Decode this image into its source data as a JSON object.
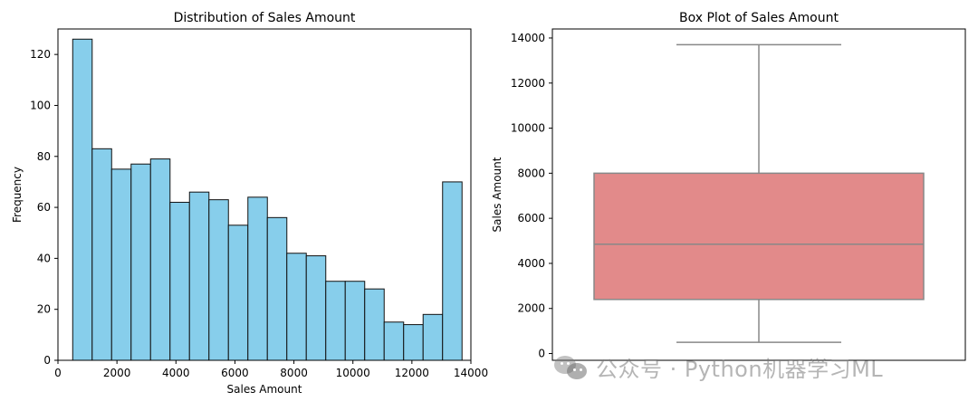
{
  "colors": {
    "hist_fill": "#87ceeb",
    "hist_edge": "#111111",
    "box_fill": "#e28a8a",
    "box_line": "#888888"
  },
  "chart_data": [
    {
      "type": "bar",
      "subtype": "histogram",
      "title": "Distribution of Sales Amount",
      "xlabel": "Sales Amount",
      "ylabel": "Frequency",
      "xlim": [
        0,
        14000
      ],
      "ylim": [
        0,
        130
      ],
      "xticks": [
        0,
        2000,
        4000,
        6000,
        8000,
        10000,
        12000,
        14000
      ],
      "yticks": [
        0,
        20,
        40,
        60,
        80,
        100,
        120
      ],
      "bins": [
        {
          "start": 500,
          "end": 1160,
          "count": 126
        },
        {
          "start": 1160,
          "end": 1820,
          "count": 83
        },
        {
          "start": 1820,
          "end": 2480,
          "count": 75
        },
        {
          "start": 2480,
          "end": 3140,
          "count": 77
        },
        {
          "start": 3140,
          "end": 3800,
          "count": 79
        },
        {
          "start": 3800,
          "end": 4460,
          "count": 62
        },
        {
          "start": 4460,
          "end": 5120,
          "count": 66
        },
        {
          "start": 5120,
          "end": 5780,
          "count": 63
        },
        {
          "start": 5780,
          "end": 6440,
          "count": 53
        },
        {
          "start": 6440,
          "end": 7100,
          "count": 64
        },
        {
          "start": 7100,
          "end": 7760,
          "count": 56
        },
        {
          "start": 7760,
          "end": 8420,
          "count": 42
        },
        {
          "start": 8420,
          "end": 9080,
          "count": 41
        },
        {
          "start": 9080,
          "end": 9740,
          "count": 31
        },
        {
          "start": 9740,
          "end": 10400,
          "count": 31
        },
        {
          "start": 10400,
          "end": 11060,
          "count": 28
        },
        {
          "start": 11060,
          "end": 11720,
          "count": 15
        },
        {
          "start": 11720,
          "end": 12380,
          "count": 14
        },
        {
          "start": 12380,
          "end": 13040,
          "count": 18
        },
        {
          "start": 13040,
          "end": 13700,
          "count": 70
        }
      ]
    },
    {
      "type": "box",
      "title": "Box Plot of Sales Amount",
      "ylabel": "Sales Amount",
      "ylim": [
        -300,
        14400
      ],
      "yticks": [
        0,
        2000,
        4000,
        6000,
        8000,
        10000,
        12000,
        14000
      ],
      "whisker_low": 500,
      "q1": 2400,
      "median": 4850,
      "q3": 8000,
      "whisker_high": 13700
    }
  ],
  "watermark": {
    "text": "公众号 · Python机器学习ML"
  }
}
